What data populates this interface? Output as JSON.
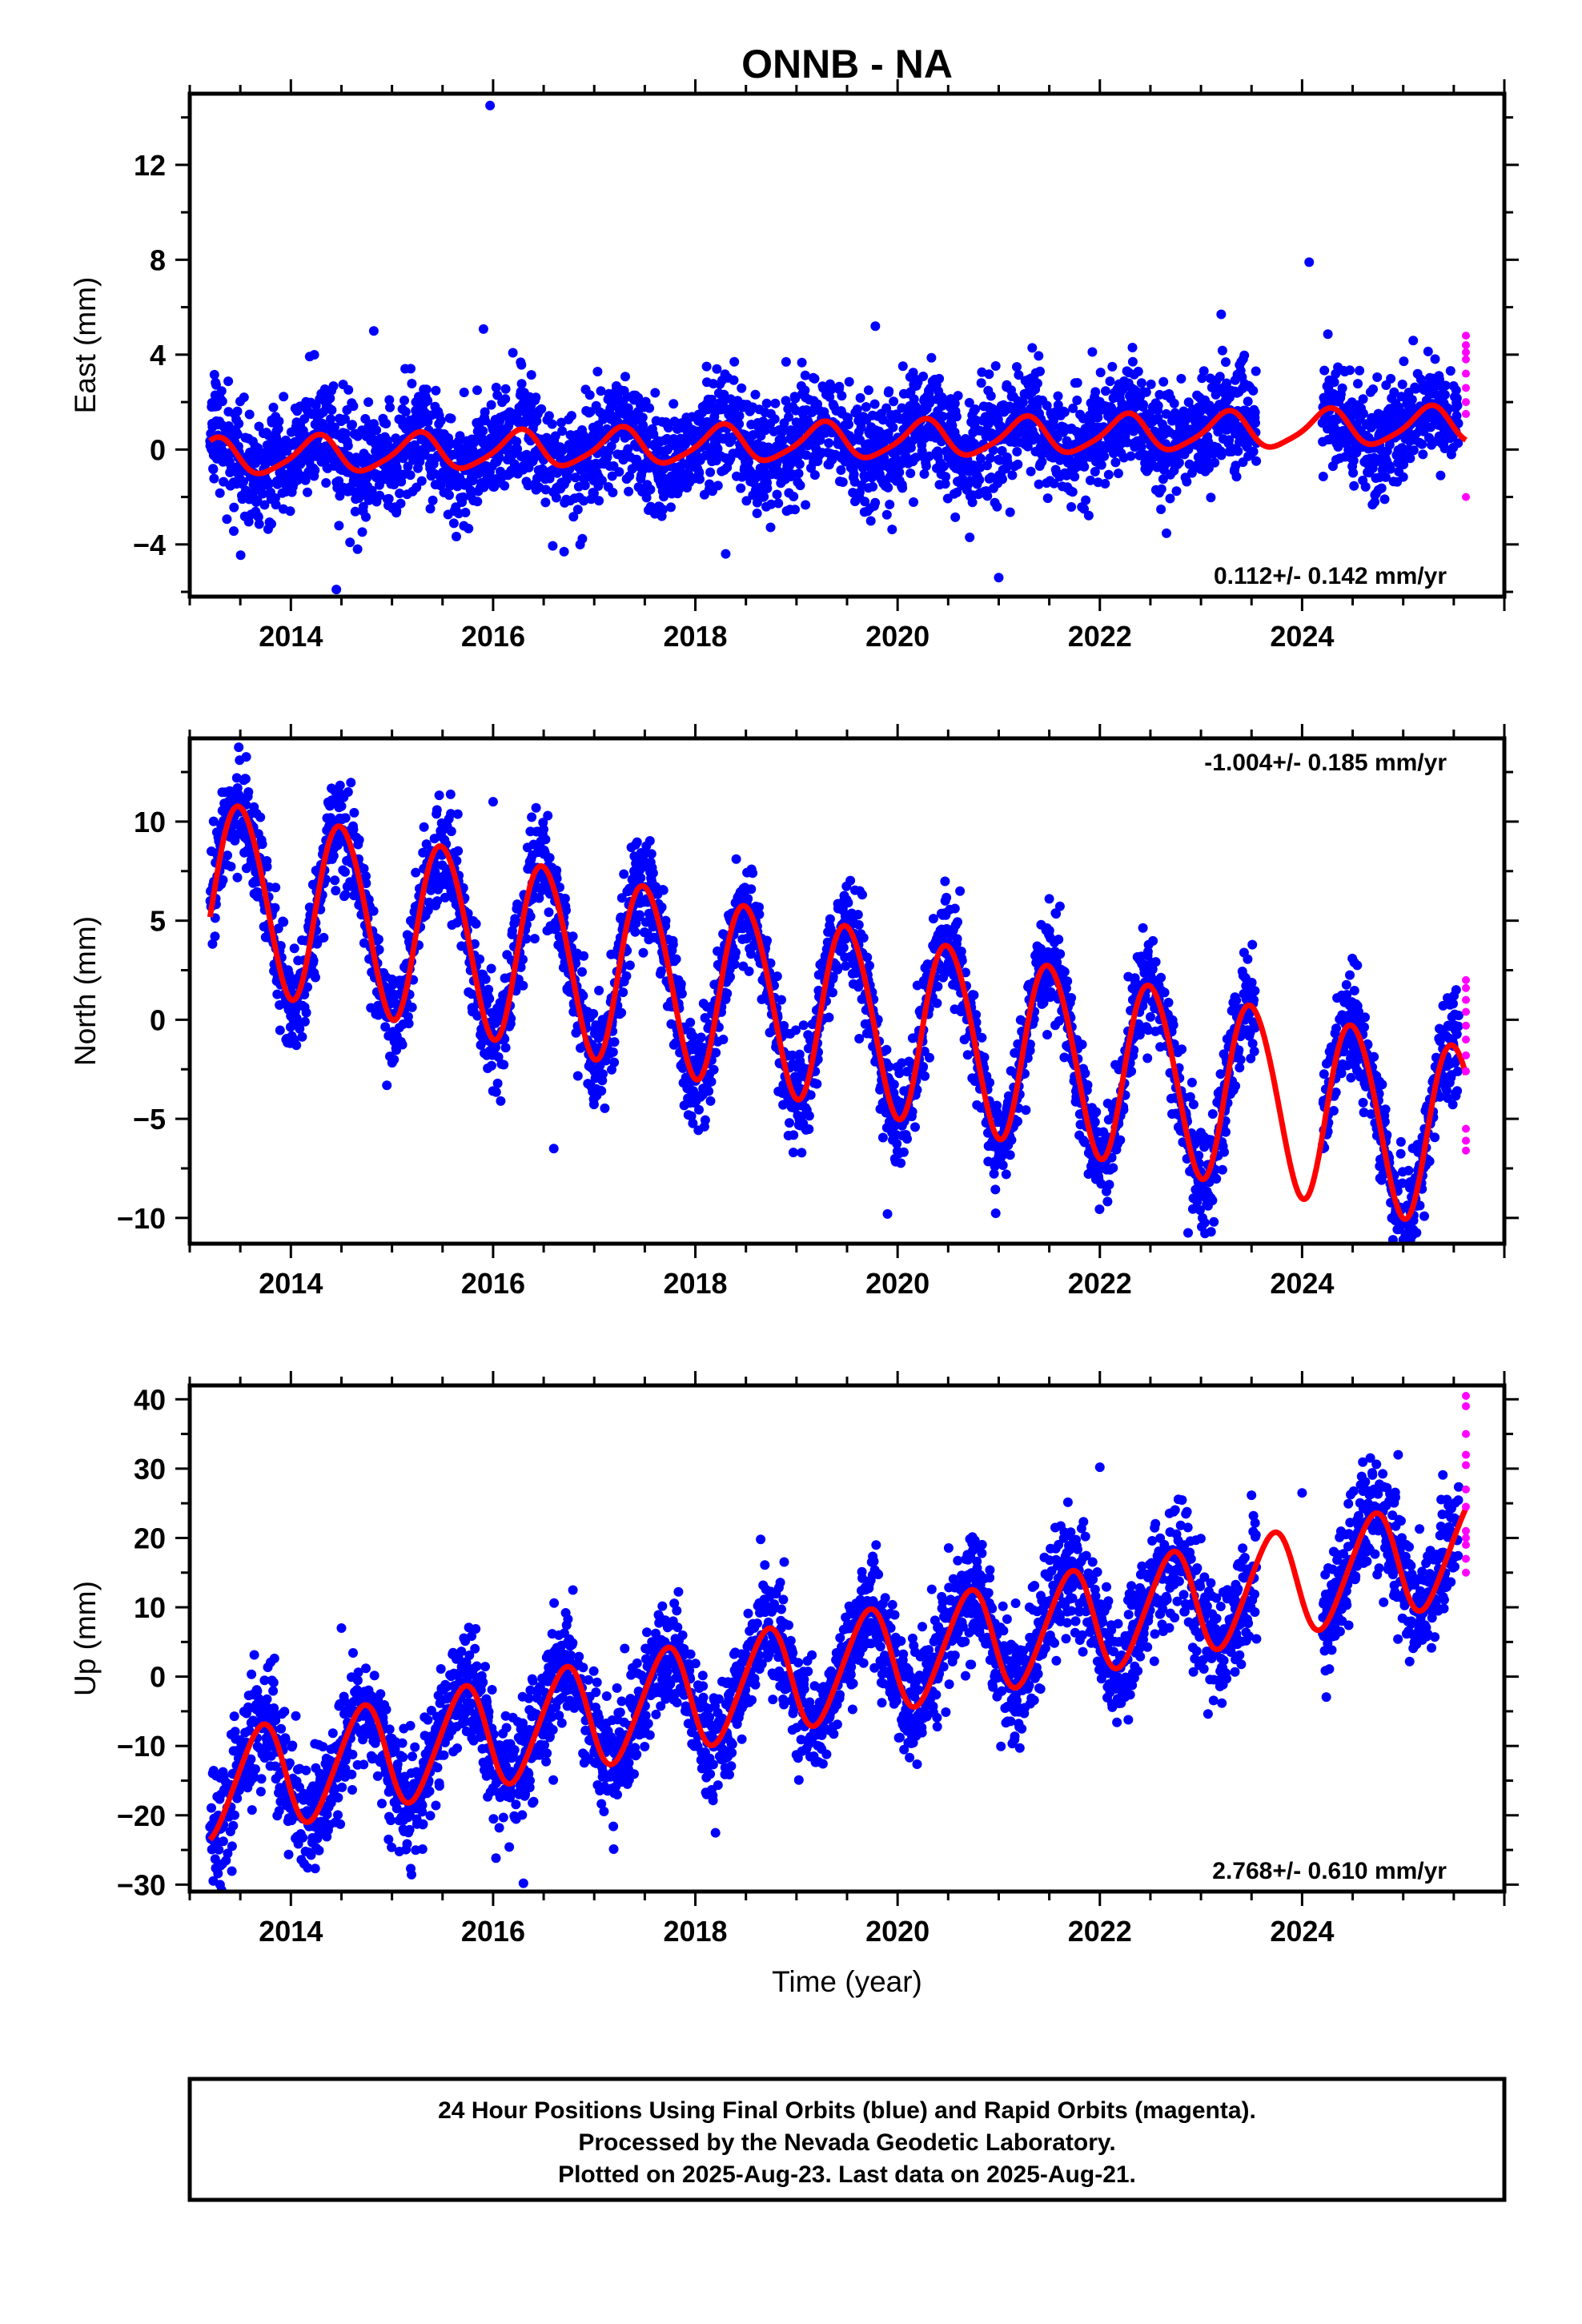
{
  "title": "ONNB - NA",
  "colors": {
    "final": "#0000ff",
    "rapid": "#ff00ff",
    "model": "#ff0000",
    "frame": "#000000"
  },
  "chart_data": [
    {
      "type": "scatter",
      "component": "east",
      "ylabel": "East (mm)",
      "xlim": [
        2013.0,
        2026.0
      ],
      "ylim": [
        -6.2,
        15.0
      ],
      "yticks": [
        -4,
        0,
        4,
        8,
        12
      ],
      "xticks": [
        2014,
        2016,
        2018,
        2020,
        2022,
        2024
      ],
      "xtick_labels": [
        "2014",
        "2016",
        "2018",
        "2020",
        "2022",
        "2024"
      ],
      "rate_label": "0.112+/- 0.142 mm/yr",
      "rate_position": "bottom-right",
      "gap": [
        2023.55,
        2024.2
      ],
      "model": {
        "intercept": -0.35,
        "trend": 0.112,
        "amplitude": 0.75,
        "phase": 0.2,
        "semiannual": 0.15,
        "ref_year": 2013.2
      },
      "noise_sd": 1.15,
      "outliers": [
        [
          2015.97,
          14.5
        ],
        [
          2024.07,
          7.9
        ],
        [
          2014.82,
          5.0
        ],
        [
          2019.78,
          5.2
        ],
        [
          2023.2,
          5.7
        ],
        [
          2021.0,
          -5.4
        ],
        [
          2014.45,
          -5.9
        ],
        [
          2018.3,
          -4.4
        ]
      ],
      "rapid": {
        "x": 2025.62,
        "values": [
          4.8,
          4.4,
          4.1,
          3.8,
          3.2,
          2.6,
          2.0,
          1.5,
          -2.0
        ]
      }
    },
    {
      "type": "scatter",
      "component": "north",
      "ylabel": "North (mm)",
      "xlim": [
        2013.0,
        2026.0
      ],
      "ylim": [
        -11.3,
        14.2
      ],
      "yticks": [
        -10,
        -5,
        0,
        5,
        10
      ],
      "xticks": [
        2014,
        2016,
        2018,
        2020,
        2022,
        2024
      ],
      "xtick_labels": [
        "2014",
        "2016",
        "2018",
        "2020",
        "2022",
        "2024"
      ],
      "rate_label": "-1.004+/- 0.185 mm/yr",
      "rate_position": "top-right",
      "gap": [
        2023.55,
        2024.2
      ],
      "model": {
        "intercept": 6.6,
        "trend": -1.004,
        "amplitude": 4.6,
        "phase": -0.05,
        "semiannual": 0.3,
        "ref_year": 2013.2
      },
      "noise_sd": 1.3,
      "outliers": [
        [
          2016.0,
          11.0
        ],
        [
          2016.6,
          -6.5
        ],
        [
          2023.1,
          -10.7
        ],
        [
          2019.9,
          -9.8
        ],
        [
          2021.5,
          6.1
        ]
      ],
      "rapid": {
        "x": 2025.62,
        "values": [
          2.0,
          1.6,
          1.0,
          0.4,
          -0.3,
          -1.0,
          -1.8,
          -2.6,
          -5.5,
          -6.1,
          -6.6
        ]
      }
    },
    {
      "type": "scatter",
      "component": "up",
      "ylabel": "Up (mm)",
      "xlabel": "Time (year)",
      "xlim": [
        2013.0,
        2026.0
      ],
      "ylim": [
        -31.0,
        42.0
      ],
      "yticks": [
        -30,
        -20,
        -10,
        0,
        10,
        20,
        30,
        40
      ],
      "xticks": [
        2014,
        2016,
        2018,
        2020,
        2022,
        2024
      ],
      "xtick_labels": [
        "2014",
        "2016",
        "2018",
        "2020",
        "2022",
        "2024"
      ],
      "rate_label": "2.768+/- 0.610 mm/yr",
      "rate_position": "bottom-right",
      "gap": [
        2023.55,
        2024.2
      ],
      "model": {
        "intercept": -16.0,
        "trend": 2.768,
        "amplitude": 7.5,
        "phase": -0.25,
        "semiannual": 0.8,
        "ref_year": 2013.2
      },
      "noise_sd": 4.2,
      "outliers": [
        [
          2022.0,
          30.2
        ],
        [
          2024.0,
          26.5
        ],
        [
          2024.95,
          32.0
        ],
        [
          2014.5,
          7.0
        ],
        [
          2016.3,
          -29.8
        ],
        [
          2013.3,
          -30.0
        ]
      ],
      "rapid": {
        "x": 2025.62,
        "values": [
          40.5,
          39.0,
          35.0,
          32.0,
          30.5,
          27.0,
          24.5,
          21.0,
          20.0,
          19.0,
          17.0,
          15.0
        ]
      }
    }
  ],
  "footer": {
    "line1": "24 Hour Positions Using Final Orbits (blue) and Rapid Orbits (magenta).",
    "line2": "Processed by the Nevada Geodetic Laboratory.",
    "line3": "Plotted on 2025-Aug-23. Last data on 2025-Aug-21."
  }
}
